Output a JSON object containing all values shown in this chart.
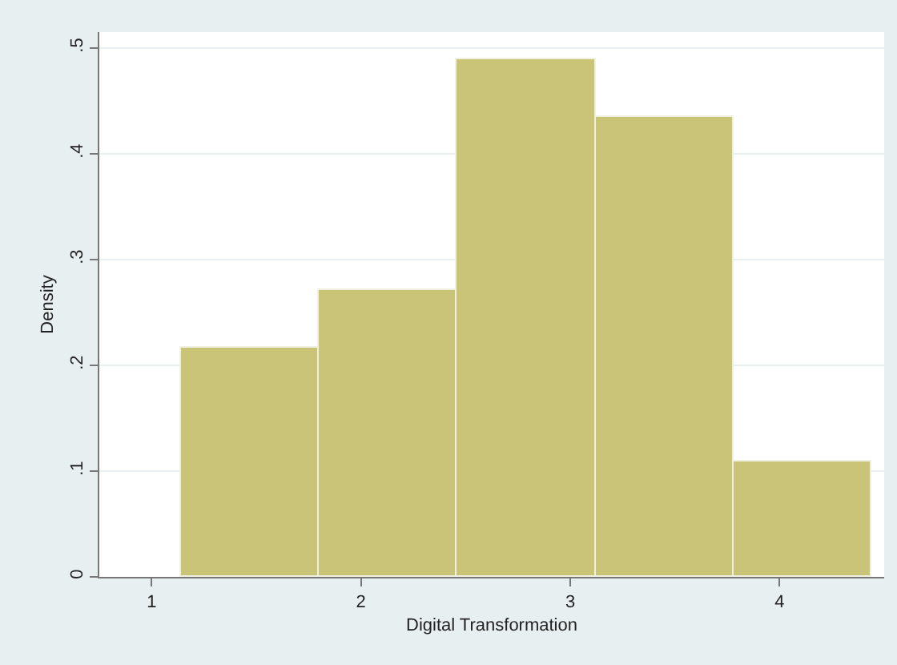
{
  "chart_data": {
    "type": "histogram",
    "xlabel": "Digital Transformation",
    "ylabel": "Density",
    "bins": [
      1.14,
      1.8,
      2.46,
      3.12,
      3.78,
      4.44
    ],
    "values": [
      0.216,
      0.271,
      0.49,
      0.435,
      0.109
    ],
    "color": "#c9c478",
    "xlim": [
      0.75,
      4.5
    ],
    "xticks": [
      1,
      2,
      3,
      4
    ],
    "ylim": [
      0,
      0.515
    ],
    "yticks": [
      0,
      {
        "value": 0.1,
        "label": ".1"
      },
      {
        "value": 0.2,
        "label": ".2"
      },
      {
        "value": 0.3,
        "label": ".3"
      },
      {
        "value": 0.4,
        "label": ".4"
      },
      {
        "value": 0.5,
        "label": ".5"
      }
    ],
    "grid": "y",
    "legend": false
  }
}
